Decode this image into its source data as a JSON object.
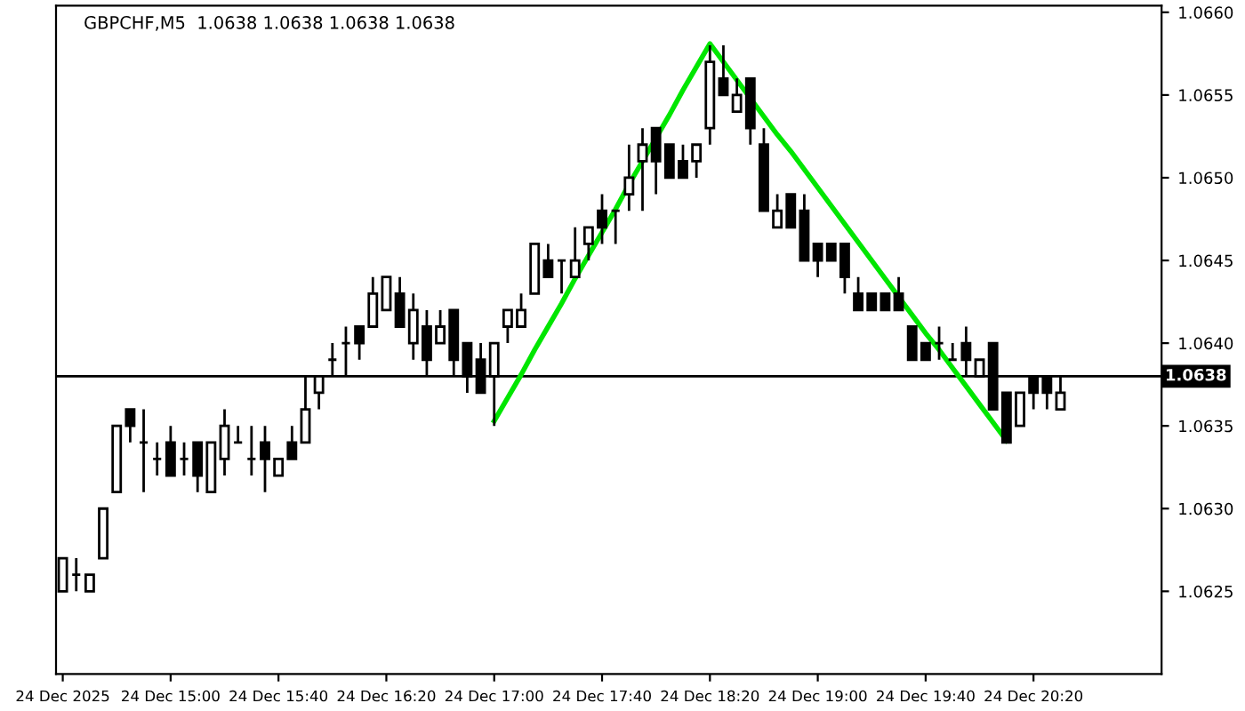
{
  "chart_data": {
    "type": "candlestick",
    "title": "GBPCHF,M5  1.0638 1.0638 1.0638 1.0638",
    "categories": [
      "24 Dec 2025",
      null,
      null,
      null,
      null,
      null,
      null,
      null,
      "24 Dec 15:00",
      null,
      null,
      null,
      null,
      null,
      null,
      null,
      "24 Dec 15:40",
      null,
      null,
      null,
      null,
      null,
      null,
      null,
      "24 Dec 16:20",
      null,
      null,
      null,
      null,
      null,
      null,
      null,
      "24 Dec 17:00",
      null,
      null,
      null,
      null,
      null,
      null,
      null,
      "24 Dec 17:40",
      null,
      null,
      null,
      null,
      null,
      null,
      null,
      "24 Dec 18:20",
      null,
      null,
      null,
      null,
      null,
      null,
      null,
      "24 Dec 19:00",
      null,
      null,
      null,
      null,
      null,
      null,
      null,
      "24 Dec 19:40",
      null,
      null,
      null,
      null,
      null,
      null,
      null,
      "24 Dec 20:20",
      null,
      null,
      null,
      null,
      null,
      null,
      null,
      null,
      null
    ],
    "ohlc": [
      [
        1.0625,
        1.0627,
        1.0625,
        1.0627
      ],
      [
        1.0626,
        1.0627,
        1.0625,
        1.0626
      ],
      [
        1.0625,
        1.0626,
        1.0625,
        1.0626
      ],
      [
        1.0627,
        1.063,
        1.0627,
        1.063
      ],
      [
        1.0631,
        1.0635,
        1.0631,
        1.0635
      ],
      [
        1.0636,
        1.0636,
        1.0634,
        1.0635
      ],
      [
        1.0634,
        1.0636,
        1.0631,
        1.0634
      ],
      [
        1.0633,
        1.0634,
        1.0632,
        1.0633
      ],
      [
        1.0634,
        1.0635,
        1.0632,
        1.0632
      ],
      [
        1.0633,
        1.0634,
        1.0632,
        1.0633
      ],
      [
        1.0634,
        1.0634,
        1.0631,
        1.0632
      ],
      [
        1.0631,
        1.0634,
        1.0631,
        1.0634
      ],
      [
        1.0633,
        1.0636,
        1.0632,
        1.0635
      ],
      [
        1.0634,
        1.0635,
        1.0634,
        1.0634
      ],
      [
        1.0633,
        1.0635,
        1.0632,
        1.0633
      ],
      [
        1.0634,
        1.0635,
        1.0631,
        1.0633
      ],
      [
        1.0632,
        1.0633,
        1.0632,
        1.0633
      ],
      [
        1.0634,
        1.0635,
        1.0633,
        1.0633
      ],
      [
        1.0634,
        1.0638,
        1.0634,
        1.0636
      ],
      [
        1.0637,
        1.0638,
        1.0636,
        1.0638
      ],
      [
        1.0639,
        1.064,
        1.0638,
        1.0639
      ],
      [
        1.064,
        1.0641,
        1.0638,
        1.064
      ],
      [
        1.0641,
        1.0641,
        1.0639,
        1.064
      ],
      [
        1.0641,
        1.0644,
        1.0641,
        1.0643
      ],
      [
        1.0642,
        1.0644,
        1.0642,
        1.0644
      ],
      [
        1.0643,
        1.0644,
        1.0641,
        1.0641
      ],
      [
        1.064,
        1.0643,
        1.0639,
        1.0642
      ],
      [
        1.0641,
        1.0642,
        1.0638,
        1.0639
      ],
      [
        1.064,
        1.0642,
        1.064,
        1.0641
      ],
      [
        1.0642,
        1.0642,
        1.0638,
        1.0639
      ],
      [
        1.064,
        1.064,
        1.0637,
        1.0638
      ],
      [
        1.0639,
        1.064,
        1.0637,
        1.0637
      ],
      [
        1.0638,
        1.064,
        1.0635,
        1.064
      ],
      [
        1.0641,
        1.0642,
        1.064,
        1.0642
      ],
      [
        1.0641,
        1.0643,
        1.0641,
        1.0642
      ],
      [
        1.0643,
        1.0646,
        1.0643,
        1.0646
      ],
      [
        1.0645,
        1.0646,
        1.0644,
        1.0644
      ],
      [
        1.0645,
        1.0645,
        1.0643,
        1.0645
      ],
      [
        1.0644,
        1.0647,
        1.0644,
        1.0645
      ],
      [
        1.0646,
        1.0647,
        1.0645,
        1.0647
      ],
      [
        1.0648,
        1.0649,
        1.0646,
        1.0647
      ],
      [
        1.0648,
        1.0648,
        1.0646,
        1.0648
      ],
      [
        1.0649,
        1.0652,
        1.0648,
        1.065
      ],
      [
        1.0651,
        1.0653,
        1.0648,
        1.0652
      ],
      [
        1.0653,
        1.0653,
        1.0649,
        1.0651
      ],
      [
        1.0652,
        1.0652,
        1.065,
        1.065
      ],
      [
        1.0651,
        1.0652,
        1.065,
        1.065
      ],
      [
        1.0651,
        1.0652,
        1.065,
        1.0652
      ],
      [
        1.0653,
        1.0658,
        1.0652,
        1.0657
      ],
      [
        1.0656,
        1.0658,
        1.0655,
        1.0655
      ],
      [
        1.0654,
        1.0656,
        1.0654,
        1.0655
      ],
      [
        1.0656,
        1.0656,
        1.0652,
        1.0653
      ],
      [
        1.0652,
        1.0653,
        1.0648,
        1.0648
      ],
      [
        1.0647,
        1.0649,
        1.0647,
        1.0648
      ],
      [
        1.0649,
        1.0649,
        1.0647,
        1.0647
      ],
      [
        1.0648,
        1.0649,
        1.0645,
        1.0645
      ],
      [
        1.0646,
        1.0646,
        1.0644,
        1.0645
      ],
      [
        1.0646,
        1.0646,
        1.0645,
        1.0645
      ],
      [
        1.0646,
        1.0646,
        1.0643,
        1.0644
      ],
      [
        1.0643,
        1.0644,
        1.0642,
        1.0642
      ],
      [
        1.0643,
        1.0643,
        1.0642,
        1.0642
      ],
      [
        1.0643,
        1.0643,
        1.0642,
        1.0642
      ],
      [
        1.0643,
        1.0644,
        1.0642,
        1.0642
      ],
      [
        1.0641,
        1.0641,
        1.0639,
        1.0639
      ],
      [
        1.064,
        1.064,
        1.0639,
        1.0639
      ],
      [
        1.064,
        1.0641,
        1.0639,
        1.064
      ],
      [
        1.0639,
        1.064,
        1.0639,
        1.0639
      ],
      [
        1.064,
        1.0641,
        1.0638,
        1.0639
      ],
      [
        1.0638,
        1.0639,
        1.0638,
        1.0639
      ],
      [
        1.064,
        1.064,
        1.0636,
        1.0636
      ],
      [
        1.0637,
        1.0637,
        1.0634,
        1.0634
      ],
      [
        1.0635,
        1.0637,
        1.0635,
        1.0637
      ],
      [
        1.0638,
        1.0638,
        1.0636,
        1.0637
      ],
      [
        1.0638,
        1.0638,
        1.0636,
        1.0637
      ],
      [
        1.0636,
        1.0638,
        1.0636,
        1.0637
      ],
      null,
      null,
      null,
      null,
      null,
      null,
      null
    ],
    "series": [
      {
        "type": "line",
        "color": "#00e600",
        "values": [
          null,
          null,
          null,
          null,
          null,
          null,
          null,
          null,
          null,
          null,
          null,
          null,
          null,
          null,
          null,
          null,
          null,
          null,
          null,
          null,
          null,
          null,
          null,
          null,
          null,
          null,
          null,
          null,
          null,
          null,
          null,
          null,
          1.06353,
          1.06367,
          1.06381,
          1.06396,
          1.0641,
          1.06424,
          1.06439,
          1.06453,
          1.06467,
          1.06481,
          1.06496,
          1.0651,
          1.06524,
          1.06538,
          1.06553,
          1.06567,
          1.06581,
          1.0657,
          1.06559,
          1.06548,
          1.06537,
          1.06526,
          1.06516,
          1.06505,
          1.06494,
          1.06483,
          1.06472,
          1.06461,
          1.0645,
          1.06439,
          1.06428,
          1.06417,
          1.06406,
          1.06396,
          1.06385,
          1.06374,
          1.06363,
          1.06352,
          1.06341,
          null,
          null,
          null,
          null,
          null,
          null,
          null,
          null,
          null,
          null,
          null
        ]
      }
    ],
    "ylim": [
      1.062,
      1.06604
    ],
    "yticks": [
      {
        "value": 1.0625,
        "label": "1.0625"
      },
      {
        "value": 1.063,
        "label": "1.0630"
      },
      {
        "value": 1.0635,
        "label": "1.0635"
      },
      {
        "value": 1.064,
        "label": "1.0640"
      },
      {
        "value": 1.0645,
        "label": "1.0645"
      },
      {
        "value": 1.065,
        "label": "1.0650"
      },
      {
        "value": 1.0655,
        "label": "1.0655"
      },
      {
        "value": 1.066,
        "label": "1.0660"
      }
    ],
    "ref_lines": [
      {
        "axis": "y",
        "value": 1.0638,
        "label": "1.0638",
        "color": "#000000"
      }
    ],
    "grid": false,
    "legend": false
  }
}
